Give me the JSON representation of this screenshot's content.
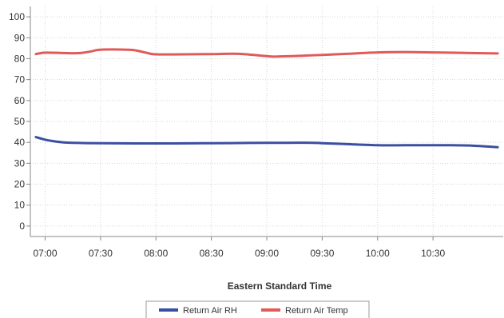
{
  "chart_data": {
    "type": "line",
    "xlabel": "Eastern Standard Time",
    "ylabel": "",
    "ylim": [
      -5,
      105
    ],
    "yticks": [
      0,
      10,
      20,
      30,
      40,
      50,
      60,
      70,
      80,
      90,
      100
    ],
    "xlim": [
      "06:52",
      "11:08"
    ],
    "xticks": [
      "07:00",
      "07:30",
      "08:00",
      "08:30",
      "09:00",
      "09:30",
      "10:00",
      "10:30"
    ],
    "grid": true,
    "legend_position": "bottom",
    "series": [
      {
        "name": "Return Air RH",
        "color": "#3b4fa1",
        "x": [
          "06:55",
          "07:00",
          "07:05",
          "07:10",
          "07:15",
          "07:30",
          "08:00",
          "08:30",
          "08:45",
          "09:00",
          "09:10",
          "09:25",
          "09:30",
          "09:45",
          "10:00",
          "10:15",
          "10:30",
          "10:40",
          "10:50",
          "11:05"
        ],
        "y": [
          42.5,
          41.3,
          40.5,
          40.0,
          39.8,
          39.6,
          39.5,
          39.6,
          39.7,
          39.8,
          39.8,
          39.8,
          39.6,
          39.1,
          38.6,
          38.6,
          38.6,
          38.6,
          38.5,
          37.7
        ]
      },
      {
        "name": "Return Air Temp",
        "color": "#e05a5a",
        "x": [
          "06:55",
          "07:00",
          "07:10",
          "07:15",
          "07:20",
          "07:25",
          "07:30",
          "07:45",
          "07:50",
          "07:55",
          "08:00",
          "08:15",
          "08:30",
          "08:45",
          "09:00",
          "09:05",
          "09:15",
          "09:30",
          "09:45",
          "10:00",
          "10:15",
          "10:30",
          "10:45",
          "11:05"
        ],
        "y": [
          82.2,
          82.9,
          82.7,
          82.6,
          82.8,
          83.5,
          84.3,
          84.3,
          83.8,
          82.8,
          82.1,
          82.1,
          82.2,
          82.3,
          81.2,
          81.0,
          81.3,
          81.8,
          82.4,
          83.0,
          83.2,
          83.0,
          82.8,
          82.5
        ]
      }
    ]
  }
}
